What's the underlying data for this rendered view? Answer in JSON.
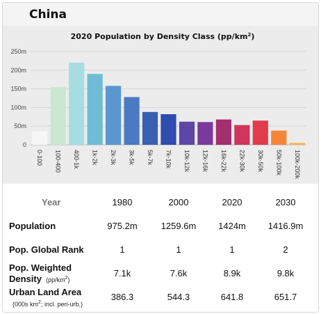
{
  "header": {
    "country": "China"
  },
  "chart_data": {
    "type": "bar",
    "title": "2020 Population by Density Class (pp/km²)",
    "title_main": "2020 Population by Density Class (pp/km",
    "title_sup": "2",
    "title_end": ")",
    "categories": [
      "0-100",
      "100-400",
      "400-1k",
      "1k-2k",
      "2k-3k",
      "3k-5k",
      "5k-7k",
      "7k-10k",
      "10k-12k",
      "12k-16k",
      "16k-22k",
      "22k-30k",
      "30k-50k",
      "50k-100k",
      "100k-200k"
    ],
    "values": [
      37,
      155,
      220,
      190,
      158,
      128,
      88,
      82,
      62,
      61,
      68,
      53,
      65,
      38,
      5
    ],
    "colors": [
      "#f6f6f6",
      "#c9e8d3",
      "#a5dde0",
      "#6fbcd6",
      "#5a97cf",
      "#4a7ac2",
      "#3a5fb1",
      "#2f4daf",
      "#5e46a6",
      "#7a3a9c",
      "#a42f6e",
      "#d0355e",
      "#e23b4b",
      "#f58637",
      "#f7b34a"
    ],
    "yticks": [
      "0",
      "50m",
      "100m",
      "150m",
      "200m",
      "250m"
    ],
    "ylim": [
      0,
      250
    ],
    "grid": true
  },
  "stats": {
    "year_label": "Year",
    "years": [
      "1980",
      "2000",
      "2020",
      "2030"
    ],
    "rows": [
      {
        "label": "Population",
        "sub": "",
        "values": [
          "975.2m",
          "1259.6m",
          "1424m",
          "1416.9m"
        ]
      },
      {
        "label": "Pop. Global Rank",
        "sub": "",
        "values": [
          "1",
          "1",
          "1",
          "2"
        ]
      },
      {
        "label": "Pop. Weighted Density",
        "label_line1": "Pop. Weighted",
        "label_line2": "Density",
        "sub": "(pp/km",
        "sub_sup": "2",
        "sub_end": ")",
        "values": [
          "7.1k",
          "7.6k",
          "8.9k",
          "9.8k"
        ]
      },
      {
        "label": "Urban Land Area",
        "sub": "(000s km",
        "sub_sup": "2",
        "sub_end": "; incl. peri-urb.)",
        "values": [
          "386.3",
          "544.3",
          "641.8",
          "651.7"
        ]
      }
    ]
  }
}
